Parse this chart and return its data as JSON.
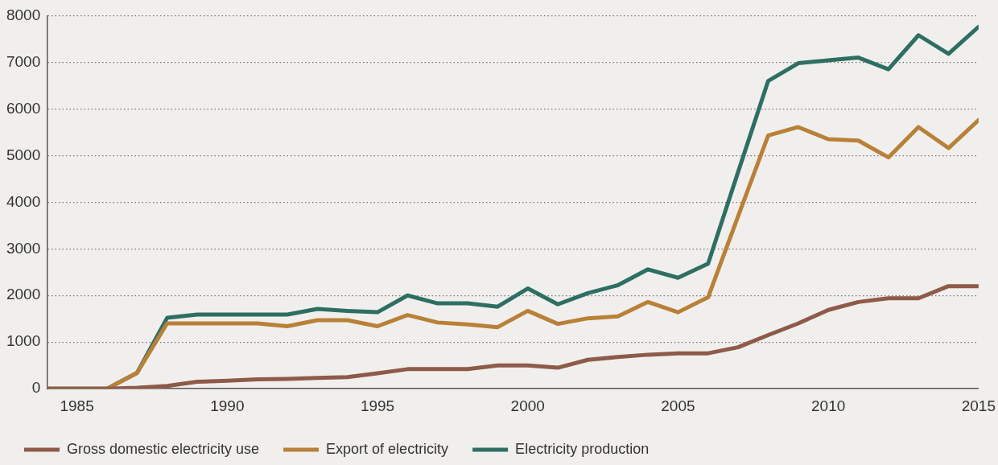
{
  "chart_data": {
    "type": "line",
    "xlim": [
      1984,
      2015
    ],
    "xticks": [
      1985,
      1990,
      1995,
      2000,
      2005,
      2010,
      2015
    ],
    "ylim": [
      0,
      8000
    ],
    "yticks": [
      0,
      1000,
      2000,
      3000,
      4000,
      5000,
      6000,
      7000,
      8000
    ],
    "grid": "y",
    "legend": "bottom left",
    "marker": "none",
    "line_style": "solid",
    "x": [
      1984,
      1985,
      1986,
      1987,
      1988,
      1989,
      1990,
      1991,
      1992,
      1993,
      1994,
      1995,
      1996,
      1997,
      1998,
      1999,
      2000,
      2001,
      2002,
      2003,
      2004,
      2005,
      2006,
      2007,
      2008,
      2009,
      2010,
      2011,
      2012,
      2013,
      2014,
      2015
    ],
    "series": [
      {
        "name": "Gross domestic electricity use",
        "color": "#8f5a4a",
        "values": [
          0,
          0,
          0,
          20,
          60,
          150,
          170,
          200,
          210,
          230,
          250,
          330,
          420,
          420,
          420,
          500,
          500,
          450,
          620,
          680,
          730,
          760,
          760,
          890,
          1150,
          1400,
          1690,
          1860,
          1940,
          1940,
          2200,
          2200
        ]
      },
      {
        "name": "Export of electricity",
        "color": "#b98038",
        "values": [
          0,
          0,
          0,
          340,
          1400,
          1400,
          1400,
          1400,
          1340,
          1470,
          1470,
          1340,
          1580,
          1420,
          1380,
          1320,
          1670,
          1390,
          1510,
          1550,
          1860,
          1640,
          1960,
          3700,
          5430,
          5610,
          5350,
          5320,
          4960,
          5610,
          5160,
          5760
        ]
      },
      {
        "name": "Electricity production",
        "color": "#2e6e63",
        "values": [
          0,
          0,
          0,
          340,
          1520,
          1590,
          1590,
          1590,
          1590,
          1710,
          1670,
          1640,
          2000,
          1830,
          1830,
          1760,
          2150,
          1810,
          2050,
          2220,
          2560,
          2380,
          2680,
          4650,
          6600,
          6980,
          7040,
          7100,
          6850,
          7580,
          7180,
          7760
        ]
      }
    ]
  }
}
